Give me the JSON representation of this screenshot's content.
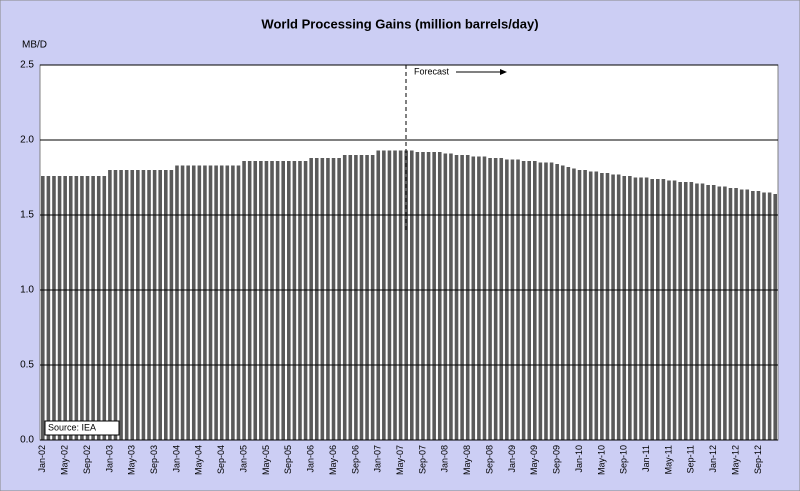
{
  "chart_data": {
    "type": "bar",
    "title": "World Processing Gains (million barrels/day)",
    "y_label": "MB/D",
    "forecast_label": "Forecast",
    "source": "Source: IEA",
    "color": "#5a5a5a",
    "grid": true,
    "ylim": [
      0,
      2.5
    ],
    "yticks": [
      {
        "value": 0,
        "label": "0.0"
      },
      0.5,
      {
        "value": 1,
        "label": "1.0"
      },
      1.5,
      {
        "value": 2,
        "label": "2.0"
      },
      2.5
    ],
    "categories": [
      "Jan-02",
      null,
      null,
      null,
      "May-02",
      null,
      null,
      null,
      "Sep-02",
      null,
      null,
      null,
      "Jan-03",
      null,
      null,
      null,
      "May-03",
      null,
      null,
      null,
      "Sep-03",
      null,
      null,
      null,
      "Jan-04",
      null,
      null,
      null,
      "May-04",
      null,
      null,
      null,
      "Sep-04",
      null,
      null,
      null,
      "Jan-05",
      null,
      null,
      null,
      "May-05",
      null,
      null,
      null,
      "Sep-05",
      null,
      null,
      null,
      "Jan-06",
      null,
      null,
      null,
      "May-06",
      null,
      null,
      null,
      "Sep-06",
      null,
      null,
      null,
      "Jan-07",
      null,
      null,
      null,
      "May-07",
      null,
      null,
      null,
      "Sep-07",
      null,
      null,
      null,
      "Jan-08",
      null,
      null,
      null,
      "May-08",
      null,
      null,
      null,
      "Sep-08",
      null,
      null,
      null,
      "Jan-09",
      null,
      null,
      null,
      "May-09",
      null,
      null,
      null,
      "Sep-09",
      null,
      null,
      null,
      "Jan-10",
      null,
      null,
      null,
      "May-10",
      null,
      null,
      null,
      "Sep-10",
      null,
      null,
      null,
      "Jan-11",
      null,
      null,
      null,
      "May-11",
      null,
      null,
      null,
      "Sep-11",
      null,
      null,
      null,
      "Jan-12",
      null,
      null,
      null,
      "May-12",
      null,
      null,
      null,
      "Sep-12",
      null,
      null,
      null
    ],
    "values": [
      1.76,
      1.76,
      1.76,
      1.76,
      1.76,
      1.76,
      1.76,
      1.76,
      1.76,
      1.76,
      1.76,
      1.76,
      1.8,
      1.8,
      1.8,
      1.8,
      1.8,
      1.8,
      1.8,
      1.8,
      1.8,
      1.8,
      1.8,
      1.8,
      1.83,
      1.83,
      1.83,
      1.83,
      1.83,
      1.83,
      1.83,
      1.83,
      1.83,
      1.83,
      1.83,
      1.83,
      1.86,
      1.86,
      1.86,
      1.86,
      1.86,
      1.86,
      1.86,
      1.86,
      1.86,
      1.86,
      1.86,
      1.86,
      1.88,
      1.88,
      1.88,
      1.88,
      1.88,
      1.88,
      1.9,
      1.9,
      1.9,
      1.9,
      1.9,
      1.9,
      1.93,
      1.93,
      1.93,
      1.93,
      1.93,
      1.93,
      1.93,
      1.92,
      1.92,
      1.92,
      1.92,
      1.92,
      1.91,
      1.91,
      1.9,
      1.9,
      1.9,
      1.89,
      1.89,
      1.89,
      1.88,
      1.88,
      1.88,
      1.87,
      1.87,
      1.87,
      1.86,
      1.86,
      1.86,
      1.85,
      1.85,
      1.85,
      1.84,
      1.83,
      1.82,
      1.81,
      1.8,
      1.8,
      1.79,
      1.79,
      1.78,
      1.78,
      1.77,
      1.77,
      1.76,
      1.76,
      1.75,
      1.75,
      1.75,
      1.74,
      1.74,
      1.74,
      1.73,
      1.73,
      1.72,
      1.72,
      1.72,
      1.71,
      1.71,
      1.7,
      1.7,
      1.69,
      1.69,
      1.68,
      1.68,
      1.67,
      1.67,
      1.66,
      1.66,
      1.65,
      1.65,
      1.64
    ]
  }
}
